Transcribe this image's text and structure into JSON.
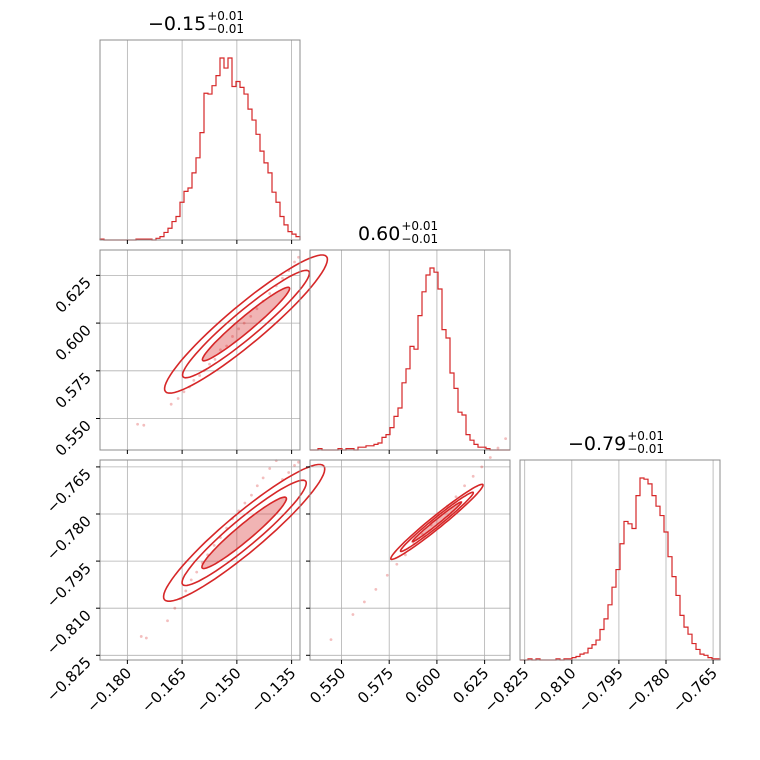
{
  "chart_data": {
    "type": "corner",
    "color": "#d62728",
    "grid": true,
    "parameters": [
      {
        "median": "−0.15",
        "plus": "+0.01",
        "minus": "−0.01",
        "range": [
          -0.1875,
          -0.1327
        ]
      },
      {
        "median": "0.60",
        "plus": "+0.01",
        "minus": "−0.01",
        "range": [
          0.5335,
          0.6383
        ]
      },
      {
        "median": "−0.79",
        "plus": "+0.01",
        "minus": "−0.01",
        "range": [
          -0.8265,
          -0.7628
        ]
      }
    ],
    "ticks": [
      {
        "values": [
          -0.18,
          -0.165,
          -0.15,
          -0.135
        ],
        "labels": [
          "−0.180",
          "−0.165",
          "−0.150",
          "−0.135"
        ]
      },
      {
        "values": [
          0.55,
          0.575,
          0.6,
          0.625
        ],
        "labels": [
          "0.550",
          "0.575",
          "0.600",
          "0.625"
        ]
      },
      {
        "values": [
          -0.825,
          -0.81,
          -0.795,
          -0.78,
          -0.765
        ],
        "labels": [
          "−0.825",
          "−0.810",
          "−0.795",
          "−0.780",
          "−0.765"
        ]
      }
    ],
    "histograms": [
      {
        "parameter": 0,
        "bin_edges_range": [
          -0.1875,
          -0.1327
        ],
        "counts": [
          1,
          0,
          0,
          0,
          0,
          0,
          0,
          0,
          0,
          1,
          1,
          1,
          1,
          0,
          2,
          4,
          9,
          14,
          22,
          28,
          45,
          58,
          62,
          80,
          98,
          128,
          175,
          174,
          184,
          196,
          217,
          205,
          217,
          183,
          189,
          182,
          174,
          156,
          143,
          126,
          106,
          92,
          80,
          57,
          45,
          28,
          18,
          10,
          7,
          4
        ]
      },
      {
        "parameter": 1,
        "bin_edges_range": [
          0.5335,
          0.6383
        ],
        "counts": [
          0,
          0,
          1,
          0,
          0,
          0,
          0,
          1,
          0,
          1,
          1,
          0,
          2,
          2,
          3,
          3,
          4,
          5,
          9,
          11,
          16,
          24,
          30,
          48,
          58,
          74,
          72,
          96,
          113,
          125,
          130,
          127,
          115,
          86,
          80,
          55,
          44,
          27,
          25,
          11,
          7,
          4,
          2,
          2,
          1,
          0,
          0,
          0,
          0,
          0
        ]
      },
      {
        "parameter": 2,
        "bin_edges_range": [
          -0.8265,
          -0.7628
        ],
        "counts": [
          0,
          0,
          1,
          0,
          1,
          0,
          0,
          0,
          0,
          1,
          0,
          1,
          1,
          2,
          3,
          5,
          6,
          10,
          13,
          17,
          26,
          35,
          47,
          62,
          77,
          99,
          118,
          116,
          112,
          140,
          155,
          154,
          150,
          140,
          131,
          123,
          109,
          88,
          71,
          55,
          38,
          28,
          22,
          14,
          9,
          5,
          4,
          2,
          1,
          1
        ]
      }
    ],
    "scatter": [
      {
        "x_parameter": 0,
        "y_parameter": 1,
        "points": [
          [
            -0.1772,
            0.547
          ],
          [
            -0.1755,
            0.5465
          ],
          [
            -0.168,
            0.5575
          ],
          [
            -0.1661,
            0.5605
          ],
          [
            -0.1645,
            0.564
          ],
          [
            -0.163,
            0.5665
          ],
          [
            -0.1618,
            0.57
          ],
          [
            -0.1602,
            0.5725
          ],
          [
            -0.159,
            0.575
          ],
          [
            -0.1575,
            0.5785
          ],
          [
            -0.156,
            0.581
          ],
          [
            -0.1545,
            0.586
          ],
          [
            -0.1528,
            0.588
          ],
          [
            -0.1512,
            0.593
          ],
          [
            -0.1495,
            0.597
          ],
          [
            -0.148,
            0.6
          ],
          [
            -0.1462,
            0.6035
          ],
          [
            -0.1445,
            0.6075
          ],
          [
            -0.1428,
            0.6115
          ],
          [
            -0.141,
            0.6155
          ],
          [
            -0.1392,
            0.6195
          ],
          [
            -0.1375,
            0.6235
          ],
          [
            -0.1358,
            0.6275
          ],
          [
            -0.1342,
            0.632
          ],
          [
            -0.1331,
            0.6345
          ]
        ]
      },
      {
        "x_parameter": 0,
        "y_parameter": 2,
        "points": [
          [
            -0.1762,
            -0.819
          ],
          [
            -0.1748,
            -0.8195
          ],
          [
            -0.169,
            -0.814
          ],
          [
            -0.167,
            -0.81
          ],
          [
            -0.1655,
            -0.807
          ],
          [
            -0.164,
            -0.8045
          ],
          [
            -0.1625,
            -0.801
          ],
          [
            -0.161,
            -0.7985
          ],
          [
            -0.1595,
            -0.7955
          ],
          [
            -0.158,
            -0.793
          ],
          [
            -0.1562,
            -0.79
          ],
          [
            -0.1545,
            -0.7875
          ],
          [
            -0.1528,
            -0.7845
          ],
          [
            -0.1512,
            -0.7815
          ],
          [
            -0.1495,
            -0.779
          ],
          [
            -0.1478,
            -0.7765
          ],
          [
            -0.146,
            -0.774
          ],
          [
            -0.1444,
            -0.771
          ],
          [
            -0.1428,
            -0.7685
          ],
          [
            -0.141,
            -0.7655
          ],
          [
            -0.1392,
            -0.763
          ],
          [
            -0.1375,
            -0.769
          ],
          [
            -0.1358,
            -0.7668
          ],
          [
            -0.1342,
            -0.7645
          ],
          [
            -0.1331,
            -0.7635
          ]
        ]
      },
      {
        "x_parameter": 1,
        "y_parameter": 2,
        "points": [
          [
            0.5445,
            -0.82
          ],
          [
            0.556,
            -0.812
          ],
          [
            0.562,
            -0.808
          ],
          [
            0.568,
            -0.804
          ],
          [
            0.574,
            -0.7995
          ],
          [
            0.579,
            -0.796
          ],
          [
            0.5835,
            -0.793
          ],
          [
            0.588,
            -0.7895
          ],
          [
            0.5925,
            -0.7865
          ],
          [
            0.597,
            -0.7835
          ],
          [
            0.601,
            -0.7805
          ],
          [
            0.6055,
            -0.7775
          ],
          [
            0.61,
            -0.7745
          ],
          [
            0.6145,
            -0.771
          ],
          [
            0.619,
            -0.768
          ],
          [
            0.6235,
            -0.765
          ],
          [
            0.628,
            -0.762
          ],
          [
            0.632,
            -0.759
          ],
          [
            0.636,
            -0.756
          ]
        ]
      }
    ],
    "contours": [
      {
        "x_parameter": 0,
        "y_parameter": 1,
        "center": [
          -0.1475,
          0.5995
        ],
        "levels": [
          {
            "major_axis": 0.0155,
            "minor_axis": 0.002,
            "angle_deg": 40
          },
          {
            "major_axis": 0.0225,
            "minor_axis": 0.0036,
            "angle_deg": 40
          },
          {
            "major_axis": 0.0288,
            "minor_axis": 0.0052,
            "angle_deg": 40
          }
        ]
      },
      {
        "x_parameter": 0,
        "y_parameter": 2,
        "center": [
          -0.148,
          -0.786
        ],
        "levels": [
          {
            "major_axis": 0.015,
            "minor_axis": 0.0022,
            "angle_deg": 40
          },
          {
            "major_axis": 0.022,
            "minor_axis": 0.0037,
            "angle_deg": 40
          },
          {
            "major_axis": 0.0285,
            "minor_axis": 0.0052,
            "angle_deg": 40
          }
        ]
      },
      {
        "x_parameter": 1,
        "y_parameter": 2,
        "center": [
          0.6,
          -0.7825
        ],
        "levels": [
          {
            "major_axis": 0.0165,
            "minor_axis": 0.0012,
            "angle_deg": 39
          },
          {
            "major_axis": 0.0245,
            "minor_axis": 0.0022,
            "angle_deg": 39
          },
          {
            "major_axis": 0.031,
            "minor_axis": 0.0032,
            "angle_deg": 39
          }
        ]
      }
    ]
  }
}
